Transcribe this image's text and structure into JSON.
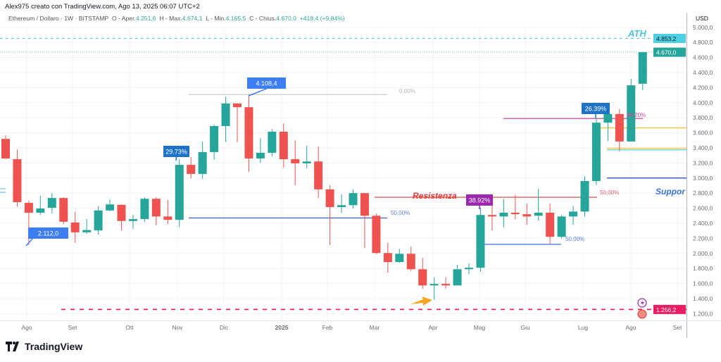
{
  "header": {
    "credit": "Alex975 creato con TradingView.com, Ago 13, 2025 06:07 UTC+2",
    "symbol": "Ethereum / Dollaro · 1W · BITSTAMP",
    "open_label": "O - Aper.",
    "open": "4.251,6",
    "high_label": "H - Max.",
    "high": "4.674,1",
    "low_label": "L - Min.",
    "low": "4.165,5",
    "close_label": "C - Chius.",
    "close": "4.670,0",
    "change": "+418,4 (+9,84%)"
  },
  "footer": {
    "brand": "TradingView"
  },
  "colors": {
    "up": "#26a69a",
    "down": "#ef5350",
    "ath": "#4dd0e1",
    "support": "#2962ff",
    "resistance": "#e53935",
    "low_line": "#e91e63"
  },
  "chart_data": {
    "type": "candlestick",
    "currency": "USD",
    "ylim": [
      1200,
      5000
    ],
    "y_ticks": [
      "5.000,0",
      "4.800,0",
      "4.600,0",
      "4.400,0",
      "4.200,0",
      "4.000,0",
      "3.800,0",
      "3.600,0",
      "3.400,0",
      "3.200,0",
      "3.000,0",
      "2.800,0",
      "2.600,0",
      "2.400,0",
      "2.200,0",
      "2.000,0",
      "1.800,0",
      "1.600,0",
      "1.400,0",
      "1.200,0"
    ],
    "x_ticks": [
      "Ago",
      "Set",
      "Ott",
      "Nov",
      "Dic",
      "2025",
      "Feb",
      "Mar",
      "Apr",
      "Mag",
      "Giu",
      "Lug",
      "Ago",
      "Set"
    ],
    "ohlc": [
      [
        3520,
        3560,
        3250,
        3260
      ],
      [
        3250,
        3380,
        2620,
        2680
      ],
      [
        2670,
        2700,
        2112,
        2540
      ],
      [
        2540,
        2765,
        2510,
        2596
      ],
      [
        2605,
        2800,
        2530,
        2735
      ],
      [
        2735,
        2745,
        2390,
        2420
      ],
      [
        2410,
        2550,
        2140,
        2280
      ],
      [
        2280,
        2455,
        2260,
        2310
      ],
      [
        2305,
        2625,
        2250,
        2570
      ],
      [
        2570,
        2715,
        2560,
        2650
      ],
      [
        2645,
        2650,
        2305,
        2430
      ],
      [
        2430,
        2510,
        2325,
        2455
      ],
      [
        2455,
        2745,
        2420,
        2725
      ],
      [
        2725,
        2745,
        2370,
        2490
      ],
      [
        2490,
        2710,
        2390,
        2445
      ],
      [
        2445,
        3250,
        2350,
        3175
      ],
      [
        3175,
        3280,
        2995,
        3055
      ],
      [
        3055,
        3485,
        2990,
        3345
      ],
      [
        3345,
        3710,
        3240,
        3690
      ],
      [
        3690,
        4080,
        3480,
        3990
      ],
      [
        3990,
        3990,
        3475,
        3940
      ],
      [
        3940,
        4108,
        3080,
        3260
      ],
      [
        3260,
        3530,
        3200,
        3335
      ],
      [
        3335,
        3650,
        3290,
        3615
      ],
      [
        3615,
        3725,
        3140,
        3250
      ],
      [
        3250,
        3500,
        2905,
        3195
      ],
      [
        3195,
        3430,
        3130,
        3220
      ],
      [
        3220,
        3420,
        2735,
        2850
      ],
      [
        2850,
        2905,
        2110,
        2615
      ],
      [
        2615,
        2785,
        2540,
        2640
      ],
      [
        2640,
        2850,
        2595,
        2800
      ],
      [
        2800,
        2800,
        2070,
        2500
      ],
      [
        2500,
        2530,
        1990,
        2005
      ],
      [
        2005,
        2140,
        1745,
        1885
      ],
      [
        1885,
        2060,
        1875,
        1995
      ],
      [
        1995,
        2090,
        1765,
        1790
      ],
      [
        1790,
        1940,
        1530,
        1575
      ],
      [
        1575,
        1680,
        1385,
        1595
      ],
      [
        1595,
        1680,
        1530,
        1575
      ],
      [
        1575,
        1850,
        1575,
        1790
      ],
      [
        1790,
        1870,
        1725,
        1810
      ],
      [
        1810,
        2605,
        1755,
        2510
      ],
      [
        2510,
        2735,
        2305,
        2490
      ],
      [
        2490,
        2725,
        2345,
        2540
      ],
      [
        2540,
        2775,
        2455,
        2520
      ],
      [
        2520,
        2660,
        2380,
        2490
      ],
      [
        2500,
        2860,
        2435,
        2540
      ],
      [
        2540,
        2660,
        2120,
        2220
      ],
      [
        2220,
        2510,
        2200,
        2490
      ],
      [
        2490,
        2630,
        2380,
        2555
      ],
      [
        2555,
        3025,
        2490,
        2960
      ],
      [
        2960,
        3790,
        2910,
        3735
      ],
      [
        3735,
        3860,
        3490,
        3850
      ],
      [
        3850,
        3915,
        3355,
        3485
      ],
      [
        3485,
        4315,
        3485,
        4230
      ],
      [
        4251.6,
        4674.1,
        4165.5,
        4670.0
      ]
    ],
    "price_labels": {
      "ath": "4.853,2",
      "last": "4.670,0",
      "low_line": "1.256,2"
    },
    "ath_value": 4853.2,
    "last_value": 4670.0,
    "low_line_value": 1256.2,
    "annotations": {
      "ath_text": "ATH",
      "resistance_text": "Resistenza",
      "support_text": "Suppor",
      "low_callout": "2.112,0",
      "high_callout": "4.108,4",
      "pct1": "29.73%",
      "pct2": "38.92%",
      "pct3": "26.39%",
      "fib_0": "0,00%",
      "fib_50a": "50,00%",
      "fib_50b": "50,00%",
      "fib_50c": "50,00%",
      "fib_882": "88,20%"
    },
    "levels": {
      "fib_0": 4108.4,
      "fib_50a": 2470,
      "resistance": 2745,
      "fib_50c": 2120,
      "fib_882": 3790,
      "yellow_1": 3665,
      "yellow_2": 3395,
      "cyan_1": 3375,
      "support": 3000
    }
  }
}
